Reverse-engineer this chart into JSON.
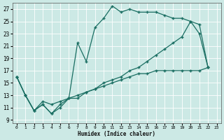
{
  "xlabel": "Humidex (Indice chaleur)",
  "background_color": "#cce9e5",
  "grid_color": "#b8d8d4",
  "line_color": "#1a6e62",
  "xlim": [
    -0.5,
    23.5
  ],
  "ylim": [
    8.5,
    28
  ],
  "yticks": [
    9,
    11,
    13,
    15,
    17,
    19,
    21,
    23,
    25,
    27
  ],
  "xticks": [
    0,
    1,
    2,
    3,
    4,
    5,
    6,
    7,
    8,
    9,
    10,
    11,
    12,
    13,
    14,
    15,
    16,
    17,
    18,
    19,
    20,
    21,
    22,
    23
  ],
  "series1_x": [
    0,
    1,
    2,
    3,
    4,
    5,
    6,
    7,
    8,
    9,
    10,
    11,
    12,
    13,
    14,
    15,
    16,
    17,
    18,
    19,
    20,
    21,
    22
  ],
  "series1_y": [
    16.0,
    13.0,
    10.5,
    11.5,
    10.0,
    11.0,
    12.5,
    21.5,
    18.5,
    24.0,
    25.5,
    27.5,
    26.5,
    27.0,
    26.5,
    26.5,
    26.5,
    26.0,
    25.5,
    25.5,
    25.0,
    23.0,
    17.5
  ],
  "series2_x": [
    0,
    1,
    2,
    3,
    4,
    5,
    6,
    7,
    8,
    9,
    10,
    11,
    12,
    13,
    14,
    15,
    16,
    17,
    18,
    19,
    20,
    21,
    22
  ],
  "series2_y": [
    16.0,
    13.0,
    10.5,
    11.5,
    10.0,
    11.5,
    12.5,
    12.5,
    13.5,
    14.0,
    15.0,
    15.5,
    16.0,
    17.0,
    17.5,
    18.5,
    19.5,
    20.5,
    21.5,
    22.5,
    25.0,
    24.5,
    17.5
  ],
  "series3_x": [
    0,
    1,
    2,
    3,
    4,
    5,
    6,
    7,
    8,
    9,
    10,
    11,
    12,
    13,
    14,
    15,
    16,
    17,
    18,
    19,
    20,
    21,
    22
  ],
  "series3_y": [
    16.0,
    13.0,
    10.5,
    12.0,
    11.5,
    12.0,
    12.5,
    13.0,
    13.5,
    14.0,
    14.5,
    15.0,
    15.5,
    16.0,
    16.5,
    16.5,
    17.0,
    17.0,
    17.0,
    17.0,
    17.0,
    17.0,
    17.5
  ]
}
